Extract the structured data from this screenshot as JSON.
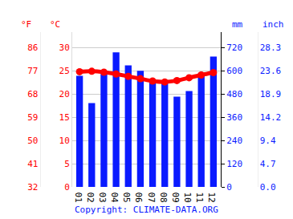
{
  "chart_data": {
    "type": "bar",
    "categories": [
      "01",
      "02",
      "03",
      "04",
      "05",
      "06",
      "07",
      "08",
      "09",
      "10",
      "11",
      "12"
    ],
    "series": [
      {
        "type": "bar",
        "color": "#0a1aff",
        "axis": "y2",
        "values": [
          574,
          433,
          583,
          695,
          628,
          600,
          541,
          541,
          466,
          495,
          587,
          674
        ]
      },
      {
        "type": "line",
        "color": "#ff0000",
        "marker": "circle",
        "values": [
          24.8,
          24.9,
          24.7,
          24.3,
          23.8,
          23.3,
          22.8,
          22.6,
          22.9,
          23.5,
          24.1,
          24.6
        ]
      }
    ],
    "ylabel": "°C",
    "ylim": [
      0,
      33.33
    ],
    "yticks": [
      0,
      5,
      10,
      15,
      20,
      25,
      30
    ],
    "y2label": "mm",
    "y2lim": [
      0,
      800
    ],
    "y2ticks": [
      0,
      120,
      240,
      360,
      480,
      600,
      720
    ],
    "y3label": "°F",
    "y3lim": [
      32,
      92
    ],
    "y3ticks": [
      32,
      41,
      50,
      59,
      68,
      77,
      86
    ],
    "y4label": "inch",
    "y4lim": [
      0,
      31.5
    ],
    "y4ticks": [
      {
        "value": 0,
        "label": "0.0"
      },
      4.7,
      9.4,
      14.2,
      18.9,
      23.6,
      28.3
    ],
    "annotations": [
      {
        "text": "Copyright: CLIMATE-DATA.ORG"
      }
    ],
    "grid": true
  }
}
